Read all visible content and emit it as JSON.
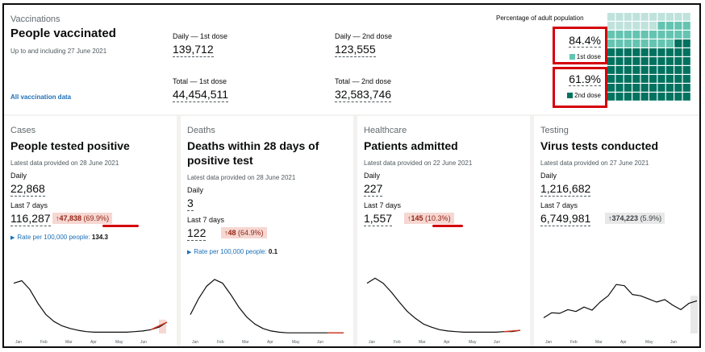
{
  "vaccinations": {
    "caption": "Vaccinations",
    "title": "People vaccinated",
    "subtitle": "Up to and including 27 June 2021",
    "link": "All vaccination data",
    "daily_first_label": "Daily — 1st dose",
    "daily_first_value": "139,712",
    "daily_second_label": "Daily — 2nd dose",
    "daily_second_value": "123,555",
    "total_first_label": "Total — 1st dose",
    "total_first_value": "44,454,511",
    "total_second_label": "Total — 2nd dose",
    "total_second_value": "32,583,746",
    "waffle_title": "Percentage of adult population",
    "first_pct": "84.4%",
    "first_label": "1st dose",
    "second_pct": "61.9%",
    "second_label": "2nd dose",
    "first_fraction": 0.844,
    "second_fraction": 0.619,
    "first_color": "#64c4b1",
    "second_color": "#00725f",
    "empty_color": "#bfe2dc"
  },
  "months": [
    "Jan",
    "Feb",
    "Mar",
    "Apr",
    "May",
    "Jun"
  ],
  "cards": [
    {
      "caption": "Cases",
      "title_line1": "People tested positive",
      "title_line2": "",
      "updated": "Latest data provided on 28 June 2021",
      "daily_label": "Daily",
      "daily_value": "22,868",
      "week_label": "Last 7 days",
      "week_value": "116,287",
      "change_arrow": "↑",
      "change_value": "47,838",
      "change_pct": "(69.9%)",
      "rate_label": "Rate per 100,000 people:",
      "rate_value": "134.3"
    },
    {
      "caption": "Deaths",
      "title_line1": "Deaths within 28 days of",
      "title_line2": "positive test",
      "updated": "Latest data provided on 28 June 2021",
      "daily_label": "Daily",
      "daily_value": "3",
      "week_label": "Last 7 days",
      "week_value": "122",
      "change_arrow": "↑",
      "change_value": "48",
      "change_pct": "(64.9%)",
      "rate_label": "Rate per 100,000 people:",
      "rate_value": "0.1"
    },
    {
      "caption": "Healthcare",
      "title_line1": "Patients admitted",
      "title_line2": "",
      "updated": "Latest data provided on 22 June 2021",
      "daily_label": "Daily",
      "daily_value": "227",
      "week_label": "Last 7 days",
      "week_value": "1,557",
      "change_arrow": "↑",
      "change_value": "145",
      "change_pct": "(10.3%)",
      "rate_label": "",
      "rate_value": ""
    },
    {
      "caption": "Testing",
      "title_line1": "Virus tests conducted",
      "title_line2": "",
      "updated": "Latest data provided on 27 June 2021",
      "daily_label": "Daily",
      "daily_value": "1,216,682",
      "week_label": "Last 7 days",
      "week_value": "6,749,981",
      "change_arrow": "↑",
      "change_value": "374,223",
      "change_pct": "(5.9%)",
      "rate_label": "",
      "rate_value": ""
    }
  ],
  "sparklines": [
    {
      "color": "#0b0c0c",
      "highlight_color": "#f6d7d2",
      "y": [
        0.8,
        0.84,
        0.7,
        0.48,
        0.3,
        0.19,
        0.12,
        0.08,
        0.05,
        0.03,
        0.02,
        0.02,
        0.02,
        0.02,
        0.02,
        0.03,
        0.04,
        0.06,
        0.1,
        0.18
      ]
    },
    {
      "color": "#0b0c0c",
      "highlight_color": "#f6d7d2",
      "y": [
        0.3,
        0.55,
        0.75,
        0.86,
        0.8,
        0.62,
        0.42,
        0.26,
        0.15,
        0.08,
        0.04,
        0.02,
        0.01,
        0.01,
        0.01,
        0.01,
        0.01,
        0.01,
        0.01,
        0.01
      ]
    },
    {
      "color": "#0b0c0c",
      "highlight_color": "#f6d7d2",
      "y": [
        0.8,
        0.88,
        0.8,
        0.66,
        0.5,
        0.35,
        0.24,
        0.15,
        0.1,
        0.06,
        0.04,
        0.03,
        0.02,
        0.02,
        0.02,
        0.02,
        0.02,
        0.03,
        0.03,
        0.05
      ]
    },
    {
      "color": "#0b0c0c",
      "highlight_color": "#e8e8e8",
      "y": [
        0.25,
        0.33,
        0.32,
        0.38,
        0.35,
        0.42,
        0.37,
        0.5,
        0.6,
        0.78,
        0.76,
        0.62,
        0.6,
        0.55,
        0.5,
        0.54,
        0.45,
        0.38,
        0.48,
        0.52
      ]
    }
  ]
}
